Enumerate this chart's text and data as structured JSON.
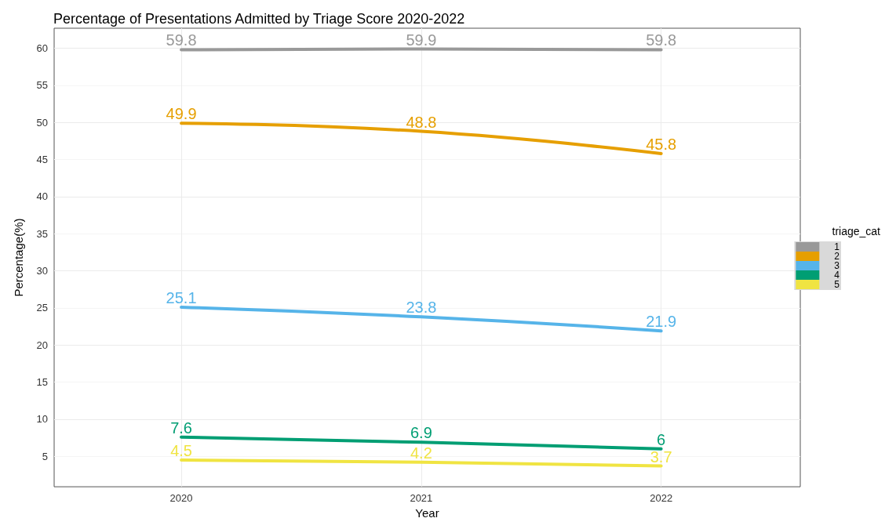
{
  "chart_data": {
    "type": "line",
    "title": "Percentage of Presentations Admitted by Triage Score 2020-2022",
    "xlabel": "Year",
    "ylabel": "Percentage(%)",
    "legend_title": "triage_cat",
    "x": [
      2020,
      2021,
      2022
    ],
    "series": [
      {
        "name": "1",
        "color": "#999999",
        "values": [
          59.8,
          59.9,
          59.8
        ]
      },
      {
        "name": "2",
        "color": "#e69f00",
        "values": [
          49.9,
          48.8,
          45.8
        ]
      },
      {
        "name": "3",
        "color": "#56b4e9",
        "values": [
          25.1,
          23.8,
          21.9
        ]
      },
      {
        "name": "4",
        "color": "#009e73",
        "values": [
          7.6,
          6.9,
          6
        ]
      },
      {
        "name": "5",
        "color": "#f0e442",
        "values": [
          4.5,
          4.2,
          3.7
        ]
      }
    ],
    "xlim": [
      2019.47,
      2022.58
    ],
    "xticks": [
      2020,
      2021,
      2022
    ],
    "ylim": [
      0.9,
      62.7
    ],
    "yticks": [
      5,
      10,
      15,
      20,
      25,
      30,
      35,
      40,
      45,
      50,
      55,
      60
    ],
    "grid": true,
    "legend": "right",
    "data_labels": true,
    "marker": "none",
    "line_style": "solid"
  }
}
